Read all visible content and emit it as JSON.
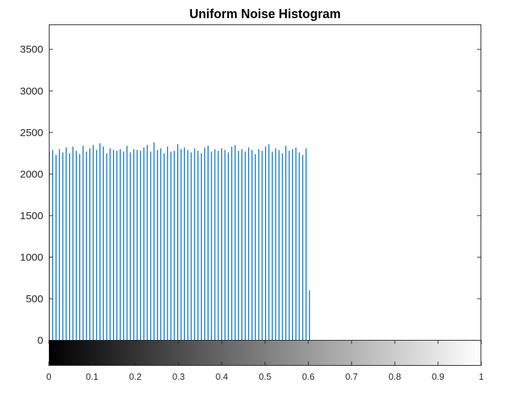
{
  "chart_data": {
    "type": "bar",
    "title": "Uniform Noise Histogram",
    "xlabel": "",
    "ylabel": "",
    "xlim": [
      0,
      1
    ],
    "ylim": [
      -300,
      3800
    ],
    "grid": false,
    "bar_color": "#0072bd",
    "x_ticks": [
      "0",
      "0.1",
      "0.2",
      "0.3",
      "0.4",
      "0.5",
      "0.6",
      "0.7",
      "0.8",
      "0.9",
      "1"
    ],
    "y_ticks": [
      "0",
      "500",
      "1000",
      "1500",
      "2000",
      "2500",
      "3000",
      "3500"
    ],
    "bin_width": 0.00390625,
    "bins_start": 0,
    "values": [
      2270,
      0,
      2290,
      0,
      2230,
      0,
      2300,
      0,
      2260,
      0,
      2320,
      0,
      2250,
      0,
      2330,
      0,
      2280,
      0,
      2240,
      0,
      2340,
      0,
      2270,
      0,
      2310,
      0,
      2350,
      0,
      2290,
      0,
      2370,
      0,
      2330,
      0,
      2250,
      0,
      2310,
      0,
      2290,
      0,
      2280,
      0,
      2300,
      0,
      2270,
      0,
      2340,
      0,
      2260,
      0,
      2300,
      0,
      2290,
      0,
      2280,
      0,
      2320,
      0,
      2350,
      0,
      2270,
      0,
      2380,
      0,
      2290,
      0,
      2310,
      0,
      2250,
      0,
      2330,
      0,
      2270,
      0,
      2280,
      0,
      2360,
      0,
      2300,
      0,
      2320,
      0,
      2290,
      0,
      2260,
      0,
      2310,
      0,
      2280,
      0,
      2250,
      0,
      2320,
      0,
      2340,
      0,
      2270,
      0,
      2300,
      0,
      2280,
      0,
      2310,
      0,
      2290,
      0,
      2260,
      0,
      2330,
      0,
      2350,
      0,
      2280,
      0,
      2300,
      0,
      2270,
      0,
      2320,
      0,
      2290,
      0,
      2240,
      0,
      2300,
      0,
      2280,
      0,
      2330,
      0,
      2360,
      0,
      2270,
      0,
      2310,
      0,
      2290,
      0,
      2250,
      0,
      2340,
      0,
      2280,
      0,
      2300,
      0,
      2320,
      0,
      2260,
      0,
      2230,
      0,
      2310,
      0,
      600
    ],
    "colorbar": {
      "from": "#000000",
      "to": "#ffffff",
      "range": [
        0,
        1
      ]
    }
  }
}
